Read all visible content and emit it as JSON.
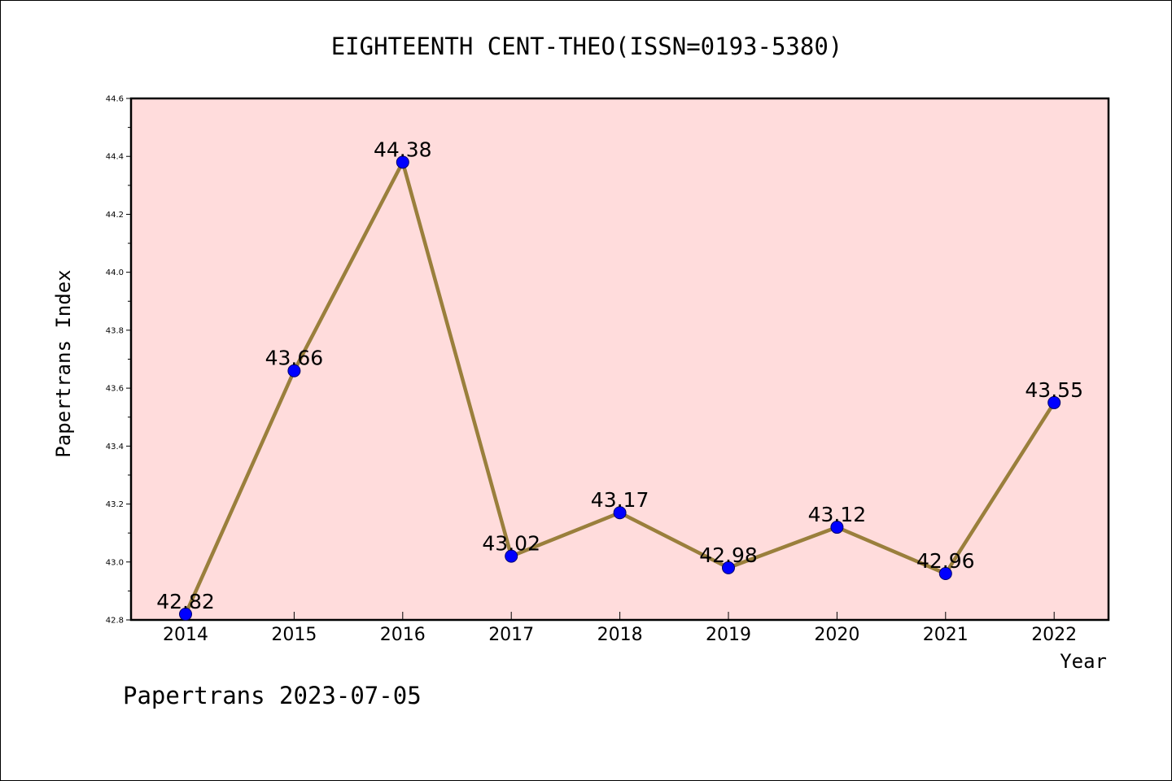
{
  "chart_data": {
    "type": "line",
    "title": "EIGHTEENTH CENT-THEO(ISSN=0193-5380)",
    "xlabel": "Year",
    "ylabel": "Papertrans Index",
    "categories": [
      "2014",
      "2015",
      "2016",
      "2017",
      "2018",
      "2019",
      "2020",
      "2021",
      "2022"
    ],
    "values": [
      42.82,
      43.66,
      44.38,
      43.02,
      43.17,
      42.98,
      43.12,
      42.96,
      43.55
    ],
    "data_labels": [
      "42.82",
      "43.66",
      "44.38",
      "43.02",
      "43.17",
      "42.98",
      "43.12",
      "42.96",
      "43.55"
    ],
    "ylim": [
      42.8,
      44.6
    ],
    "yticks": [
      "42.8",
      "43.0",
      "43.2",
      "43.4",
      "43.6",
      "43.8",
      "44.0",
      "44.2",
      "44.4",
      "44.6"
    ],
    "grid": false,
    "colors": {
      "plot_background": "#ffdcdc",
      "line": "#9a7f3c",
      "marker": "#0000ff",
      "marker_edge": "#00006e"
    }
  },
  "footer": {
    "text": "Papertrans 2023-07-05"
  }
}
